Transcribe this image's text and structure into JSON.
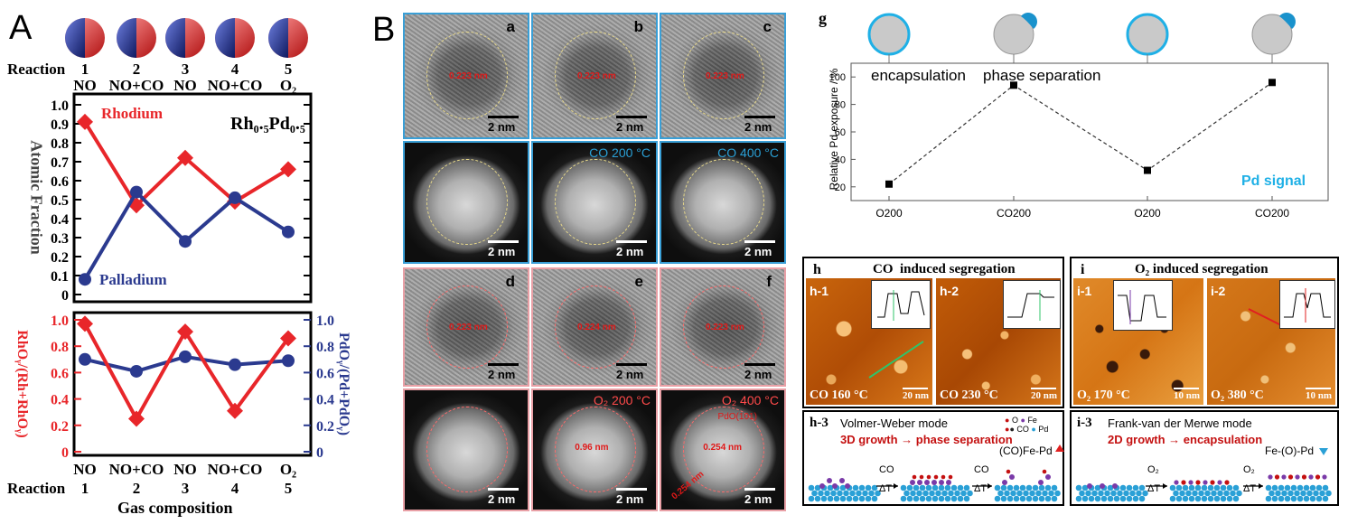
{
  "panel_a": {
    "letter": "A",
    "reaction_label": "Reaction",
    "reactions": [
      {
        "num": "1",
        "gas": "NO"
      },
      {
        "num": "2",
        "gas": "NO+CO"
      },
      {
        "num": "3",
        "gas": "NO"
      },
      {
        "num": "4",
        "gas": "NO+CO"
      },
      {
        "num": "5",
        "gas": "O₂"
      }
    ],
    "composition": "Rh₀.₅Pd₀.₅",
    "rhodium": "Rhodium",
    "palladium": "Palladium",
    "ylabel_top": "Atomic Fraction",
    "ylabel_left": "RhOᵧ/(Rh+RhOᵧ)",
    "ylabel_right": "PdOᵧ/(Pd+PdOᵧ)",
    "xlabel": "Gas composition",
    "colors": {
      "rh": "#e8262a",
      "pd": "#2b3a8f"
    },
    "top_ticks": [
      "0",
      "0.1",
      "0.2",
      "0.3",
      "0.4",
      "0.5",
      "0.6",
      "0.7",
      "0.8",
      "0.9",
      "1.0"
    ],
    "bottom_ticks": [
      "0",
      "0.2",
      "0.4",
      "0.6",
      "0.8",
      "1.0"
    ],
    "chart_data": {
      "type": "line",
      "x": [
        1,
        2,
        3,
        4,
        5
      ],
      "top_series": [
        {
          "name": "Rhodium",
          "values": [
            0.91,
            0.47,
            0.72,
            0.49,
            0.66
          ]
        },
        {
          "name": "Palladium",
          "values": [
            0.08,
            0.54,
            0.28,
            0.51,
            0.33
          ]
        }
      ],
      "bottom_series": [
        {
          "values": [
            0.97,
            0.25,
            0.91,
            0.31,
            0.86
          ]
        },
        {
          "values": [
            0.7,
            0.61,
            0.72,
            0.66,
            0.69
          ]
        }
      ],
      "ylim": [
        0,
        1.0
      ]
    }
  },
  "panel_b": {
    "letter": "B",
    "tiles": [
      {
        "label": "a",
        "meas": "0.223 nm",
        "scale": "2 nm"
      },
      {
        "label": "b",
        "meas": "0.223 nm",
        "scale": "2 nm"
      },
      {
        "label": "c",
        "meas": "0.223 nm",
        "scale": "2 nm"
      },
      {
        "label": "",
        "cond": "",
        "scale": "2 nm"
      },
      {
        "label": "",
        "cond": "CO 200 °C",
        "scale": "2 nm"
      },
      {
        "label": "",
        "cond": "CO 400 °C",
        "scale": "2 nm"
      },
      {
        "label": "d",
        "meas": "0.223 nm",
        "scale": "2 nm"
      },
      {
        "label": "e",
        "meas": "0.224 nm",
        "scale": "2 nm"
      },
      {
        "label": "f",
        "meas": "0.223 nm",
        "scale": "2 nm"
      },
      {
        "label": "",
        "cond": "",
        "scale": "2 nm"
      },
      {
        "label": "",
        "cond": "O₂ 200 °C",
        "meas": "0.96 nm",
        "scale": "2 nm"
      },
      {
        "label": "",
        "cond": "O₂ 400 °C",
        "extra": "PdO(101)",
        "meas": "0.254 nm",
        "meas2": "0.254 nm",
        "scale": "2 nm"
      }
    ]
  },
  "panel_g": {
    "letter": "g",
    "ylabel": "Relative Pd exposure / %",
    "annot1": "encapsulation",
    "annot2": "phase separation",
    "signal": "Pd signal",
    "chart_data": {
      "type": "line",
      "categories": [
        "O200",
        "CO200",
        "O200",
        "CO200"
      ],
      "values": [
        22,
        94,
        32,
        96
      ],
      "ylim": [
        10,
        110
      ],
      "yticks": [
        20,
        40,
        60,
        80,
        100
      ]
    }
  },
  "panel_h": {
    "letter": "h",
    "title": "CO  induced segregation",
    "h1": "h-1",
    "h2": "h-2",
    "h1_cond": "CO 160 °C",
    "h2_cond": "CO 230 °C",
    "h1_scale": "20 nm",
    "h2_scale": "20 nm",
    "h3": "h-3",
    "mode": "Volmer-Weber mode",
    "growth": "3D growth → phase separation",
    "species": "(CO)Fe-Pd",
    "step": "CO",
    "dT": "ΔT",
    "legend": [
      "O",
      "Fe",
      "CO",
      "Pd"
    ]
  },
  "panel_i": {
    "letter": "i",
    "title": "O₂ induced segregation",
    "i1": "i-1",
    "i2": "i-2",
    "i1_cond": "O₂ 170 °C",
    "i2_cond": "O₂ 380 °C",
    "i1_scale": "10 nm",
    "i2_scale": "10 nm",
    "i3": "i-3",
    "mode": "Frank-van der Merwe mode",
    "growth": "2D growth → encapsulation",
    "species": "Fe-(O)-Pd",
    "step": "O₂",
    "dT": "ΔT"
  }
}
